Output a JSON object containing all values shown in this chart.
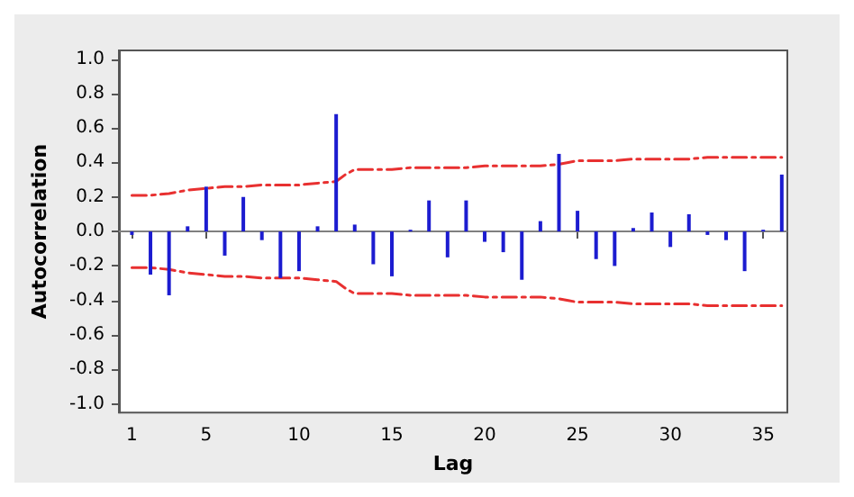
{
  "chart_data": {
    "type": "bar",
    "xlabel": "Lag",
    "ylabel": "Autocorrelation",
    "xlim": [
      0.3,
      36.3
    ],
    "xticks": [
      1,
      5,
      10,
      15,
      20,
      25,
      30,
      35
    ],
    "ylim": [
      -1.05,
      1.05
    ],
    "yticks": [
      {
        "value": -1,
        "label": "-1.0"
      },
      {
        "value": -0.8,
        "label": "-0.8"
      },
      {
        "value": -0.6,
        "label": "-0.6"
      },
      {
        "value": -0.4,
        "label": "-0.4"
      },
      {
        "value": -0.2,
        "label": "-0.2"
      },
      {
        "value": 0,
        "label": "0.0"
      },
      {
        "value": 0.2,
        "label": "0.2"
      },
      {
        "value": 0.4,
        "label": "0.4"
      },
      {
        "value": 0.6,
        "label": "0.6"
      },
      {
        "value": 0.8,
        "label": "0.8"
      },
      {
        "value": 1,
        "label": "1.0"
      }
    ],
    "grid": false,
    "marker": "none",
    "ref_lines": [
      {
        "axis": "y",
        "value": 0,
        "color": "#808080"
      }
    ],
    "series": [
      {
        "color": "#1c1cd0",
        "x": [
          1,
          2,
          3,
          4,
          5,
          6,
          7,
          8,
          9,
          10,
          11,
          12,
          13,
          14,
          15,
          16,
          17,
          18,
          19,
          20,
          21,
          22,
          23,
          24,
          25,
          26,
          27,
          28,
          29,
          30,
          31,
          32,
          33,
          34,
          35,
          36
        ],
        "values": [
          -0.02,
          -0.25,
          -0.37,
          0.03,
          0.26,
          -0.14,
          0.2,
          -0.05,
          -0.27,
          -0.23,
          0.03,
          0.68,
          0.04,
          -0.19,
          -0.26,
          0.01,
          0.18,
          -0.15,
          0.18,
          -0.06,
          -0.12,
          -0.28,
          0.06,
          0.45,
          0.12,
          -0.16,
          -0.2,
          0.02,
          0.11,
          -0.09,
          0.1,
          -0.02,
          -0.05,
          -0.23,
          0.01,
          0.33
        ]
      },
      {
        "type": "line",
        "color": "#e83030",
        "line_style": "dashed",
        "x": [
          1,
          2,
          3,
          4,
          5,
          6,
          7,
          8,
          9,
          10,
          11,
          12,
          12.5,
          13,
          14,
          15,
          16,
          17,
          18,
          19,
          20,
          21,
          22,
          23,
          24,
          24.5,
          25,
          26,
          27,
          28,
          29,
          30,
          31,
          32,
          33,
          34,
          35,
          36
        ],
        "values": [
          0.21,
          0.21,
          0.22,
          0.24,
          0.25,
          0.26,
          0.26,
          0.27,
          0.27,
          0.27,
          0.28,
          0.29,
          0.33,
          0.36,
          0.36,
          0.36,
          0.37,
          0.37,
          0.37,
          0.37,
          0.38,
          0.38,
          0.38,
          0.38,
          0.39,
          0.4,
          0.41,
          0.41,
          0.41,
          0.42,
          0.42,
          0.42,
          0.42,
          0.43,
          0.43,
          0.43,
          0.43,
          0.43
        ]
      },
      {
        "type": "line",
        "color": "#e83030",
        "line_style": "dashed",
        "x": [
          1,
          2,
          3,
          4,
          5,
          6,
          7,
          8,
          9,
          10,
          11,
          12,
          12.5,
          13,
          14,
          15,
          16,
          17,
          18,
          19,
          20,
          21,
          22,
          23,
          24,
          24.5,
          25,
          26,
          27,
          28,
          29,
          30,
          31,
          32,
          33,
          34,
          35,
          36
        ],
        "values": [
          -0.21,
          -0.21,
          -0.22,
          -0.24,
          -0.25,
          -0.26,
          -0.26,
          -0.27,
          -0.27,
          -0.27,
          -0.28,
          -0.29,
          -0.33,
          -0.36,
          -0.36,
          -0.36,
          -0.37,
          -0.37,
          -0.37,
          -0.37,
          -0.38,
          -0.38,
          -0.38,
          -0.38,
          -0.39,
          -0.4,
          -0.41,
          -0.41,
          -0.41,
          -0.42,
          -0.42,
          -0.42,
          -0.42,
          -0.43,
          -0.43,
          -0.43,
          -0.43,
          -0.43
        ]
      }
    ]
  }
}
